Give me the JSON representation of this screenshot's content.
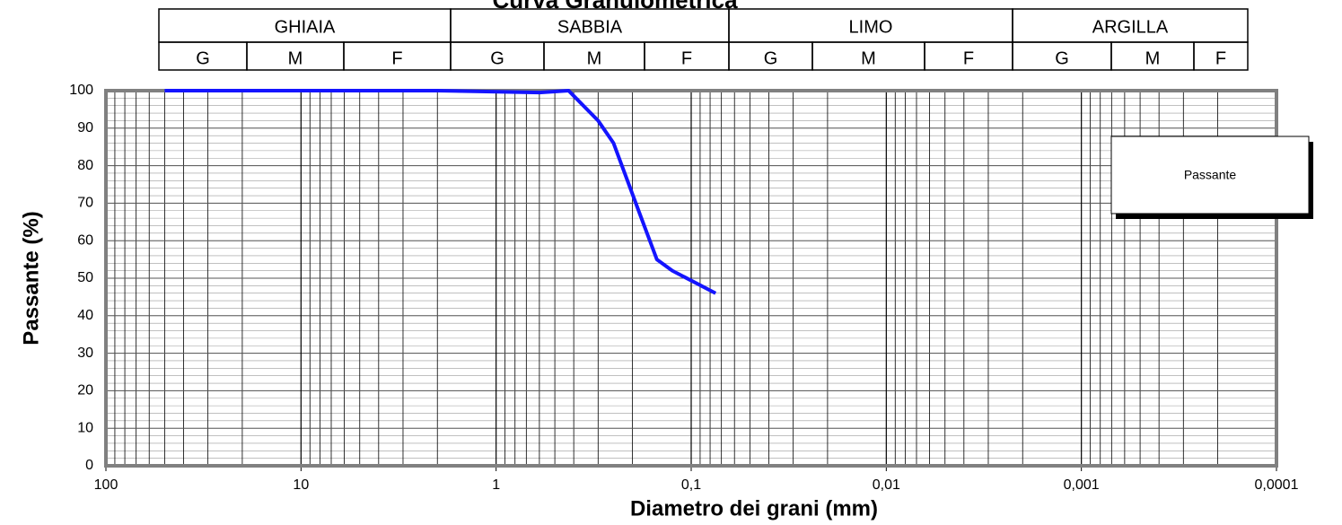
{
  "chart_data": {
    "type": "line",
    "title": "Curva Granulometrica",
    "header": {
      "groups": [
        "GHIAIA",
        "SABBIA",
        "LIMO",
        "ARGILLA"
      ],
      "subgroups": [
        [
          "G",
          "M",
          "F"
        ],
        [
          "G",
          "M",
          "F"
        ],
        [
          "G",
          "M",
          "F"
        ],
        [
          "G",
          "M",
          "F"
        ]
      ]
    },
    "xlabel": "Diametro dei grani (mm)",
    "ylabel": "Passante (%)",
    "xscale": "log",
    "x": [
      50,
      2,
      0.6,
      0.425,
      0.3,
      0.25,
      0.18,
      0.15,
      0.125,
      0.075
    ],
    "series": [
      {
        "name": "Passante",
        "color": "#1414ff",
        "values": [
          100,
          100,
          99.5,
          100,
          92,
          86,
          66,
          55,
          52,
          46
        ]
      }
    ],
    "xlim": [
      100,
      0.0001
    ],
    "xticks": [
      100,
      10,
      1,
      {
        "value": 0.1,
        "label": "0,1"
      },
      {
        "value": 0.01,
        "label": "0,01"
      },
      {
        "value": 0.001,
        "label": "0,001"
      },
      {
        "value": 0.0001,
        "label": "0,0001"
      }
    ],
    "ylim": [
      0,
      100
    ],
    "yticks": [
      0,
      10,
      20,
      30,
      40,
      50,
      60,
      70,
      80,
      90,
      100
    ],
    "grid": true,
    "legend": "upper right"
  }
}
